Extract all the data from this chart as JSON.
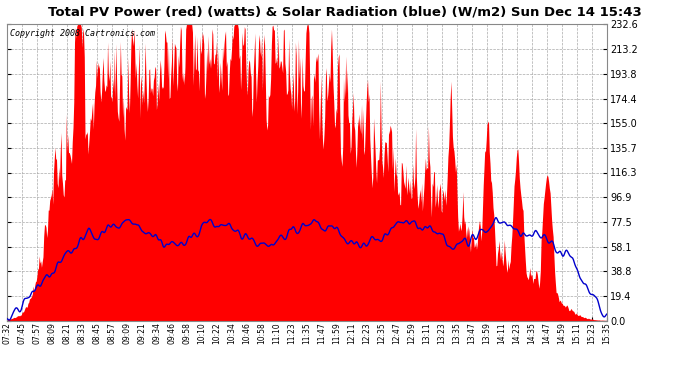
{
  "title": "Total PV Power (red) (watts) & Solar Radiation (blue) (W/m2) Sun Dec 14 15:43",
  "copyright": "Copyright 2008 Cartronics.com",
  "yticks": [
    0.0,
    19.4,
    38.8,
    58.1,
    77.5,
    96.9,
    116.3,
    135.7,
    155.0,
    174.4,
    193.8,
    213.2,
    232.6
  ],
  "ymax": 232.6,
  "ymin": 0.0,
  "bg_color": "#ffffff",
  "plot_bg_color": "#ffffff",
  "title_bg_color": "#d8d8d8",
  "grid_color": "#aaaaaa",
  "red_color": "#ff0000",
  "blue_color": "#0000cc",
  "text_color": "#000000",
  "xtick_labels": [
    "07:32",
    "07:45",
    "07:57",
    "08:09",
    "08:21",
    "08:33",
    "08:45",
    "08:57",
    "09:09",
    "09:21",
    "09:34",
    "09:46",
    "09:58",
    "10:10",
    "10:22",
    "10:34",
    "10:46",
    "10:58",
    "11:10",
    "11:23",
    "11:35",
    "11:47",
    "11:59",
    "12:11",
    "12:23",
    "12:35",
    "12:47",
    "12:59",
    "13:11",
    "13:23",
    "13:35",
    "13:47",
    "13:59",
    "14:11",
    "14:23",
    "14:35",
    "14:47",
    "14:59",
    "15:11",
    "15:23",
    "15:35"
  ],
  "n_points": 800,
  "seed": 77
}
